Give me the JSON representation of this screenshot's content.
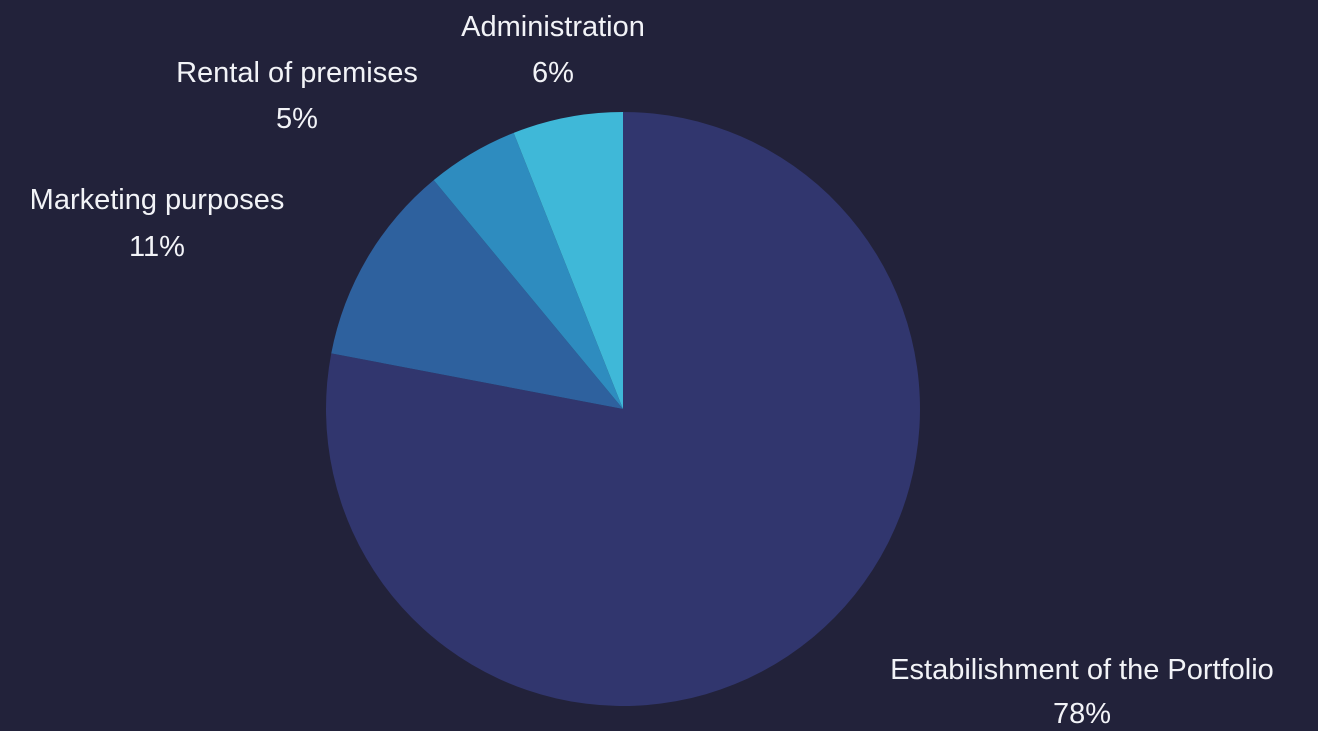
{
  "chart_data": {
    "type": "pie",
    "slices": [
      {
        "label": "Estabilishment of the Portfolio",
        "value": 78,
        "value_label": "78%",
        "color": "#31366e"
      },
      {
        "label": "Marketing purposes",
        "value": 11,
        "value_label": "11%",
        "color": "#2e619e"
      },
      {
        "label": "Rental of premises",
        "value": 5,
        "value_label": "5%",
        "color": "#2e8cbf"
      },
      {
        "label": "Administration",
        "value": 6,
        "value_label": "6%",
        "color": "#3fb8d8"
      }
    ],
    "start_angle_deg": 0,
    "direction": "clockwise",
    "background": "#22223a",
    "label_color": "#f2f3f7"
  }
}
